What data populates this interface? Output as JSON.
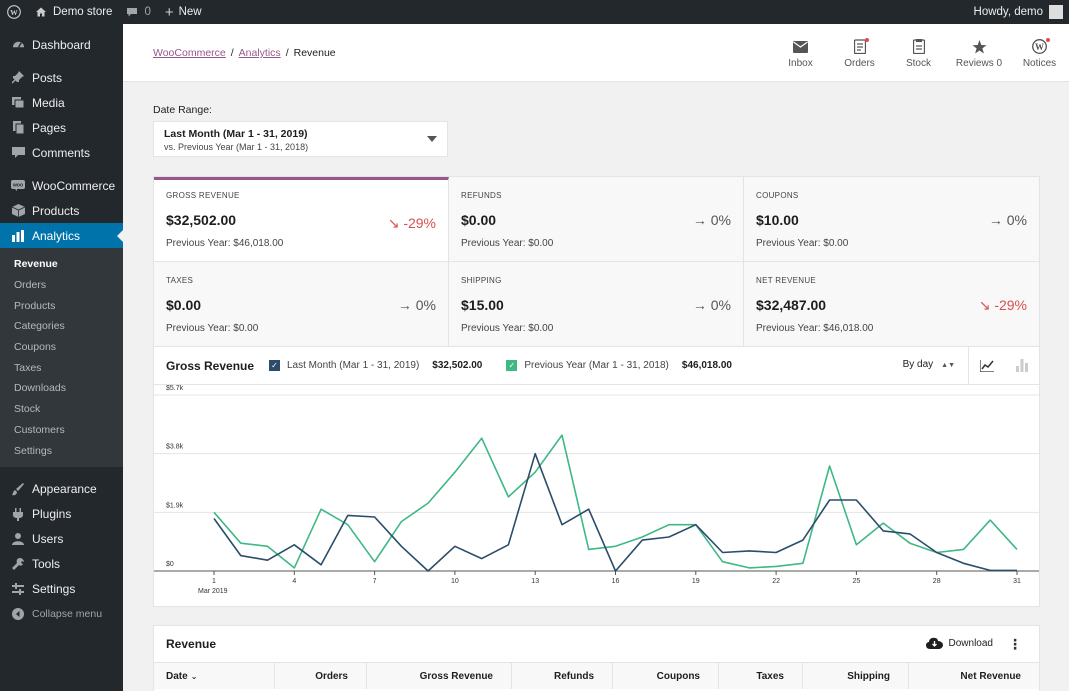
{
  "adminbar": {
    "site_name": "Demo store",
    "comments_count": "0",
    "new_label": "New",
    "howdy": "Howdy, demo"
  },
  "sidebar": {
    "items_top": [
      {
        "label": "Dashboard",
        "icon": "dashboard-icon"
      }
    ],
    "items_mid": [
      {
        "label": "Posts",
        "icon": "pin-icon"
      },
      {
        "label": "Media",
        "icon": "media-icon"
      },
      {
        "label": "Pages",
        "icon": "pages-icon"
      },
      {
        "label": "Comments",
        "icon": "comments-icon"
      }
    ],
    "woocommerce": "WooCommerce",
    "products": "Products",
    "analytics": "Analytics",
    "submenu": [
      "Revenue",
      "Orders",
      "Products",
      "Categories",
      "Coupons",
      "Taxes",
      "Downloads",
      "Stock",
      "Customers",
      "Settings"
    ],
    "items_bottom": [
      {
        "label": "Appearance",
        "icon": "brush-icon"
      },
      {
        "label": "Plugins",
        "icon": "plug-icon"
      },
      {
        "label": "Users",
        "icon": "users-icon"
      },
      {
        "label": "Tools",
        "icon": "wrench-icon"
      },
      {
        "label": "Settings",
        "icon": "settings-icon"
      }
    ],
    "collapse": "Collapse menu"
  },
  "header": {
    "breadcrumb": [
      "WooCommerce",
      "Analytics",
      "Revenue"
    ],
    "actions": [
      {
        "label": "Inbox",
        "icon": "inbox-icon",
        "dot": false
      },
      {
        "label": "Orders",
        "icon": "orders-icon",
        "dot": true
      },
      {
        "label": "Stock",
        "icon": "stock-icon",
        "dot": false
      },
      {
        "label": "Reviews 0",
        "icon": "star-icon",
        "dot": false
      },
      {
        "label": "Notices",
        "icon": "wordpress-icon",
        "dot": true
      }
    ]
  },
  "date_range": {
    "label": "Date Range:",
    "main": "Last Month (Mar 1 - 31, 2019)",
    "sub": "vs. Previous Year (Mar 1 - 31, 2018)"
  },
  "summary": [
    {
      "label": "GROSS REVENUE",
      "value": "$32,502.00",
      "delta": "-29%",
      "negative": true,
      "prev": "Previous Year: $46,018.00",
      "selected": true
    },
    {
      "label": "REFUNDS",
      "value": "$0.00",
      "delta": "0%",
      "negative": false,
      "prev": "Previous Year: $0.00",
      "selected": false
    },
    {
      "label": "COUPONS",
      "value": "$10.00",
      "delta": "0%",
      "negative": false,
      "prev": "Previous Year: $0.00",
      "selected": false
    },
    {
      "label": "TAXES",
      "value": "$0.00",
      "delta": "0%",
      "negative": false,
      "prev": "Previous Year: $0.00",
      "selected": false
    },
    {
      "label": "SHIPPING",
      "value": "$15.00",
      "delta": "0%",
      "negative": false,
      "prev": "Previous Year: $0.00",
      "selected": false
    },
    {
      "label": "NET REVENUE",
      "value": "$32,487.00",
      "delta": "-29%",
      "negative": true,
      "prev": "Previous Year: $46,018.00",
      "selected": false
    }
  ],
  "chart": {
    "title": "Gross Revenue",
    "legend": [
      {
        "label": "Last Month (Mar 1 - 31, 2019)",
        "total": "$32,502.00",
        "color": "#2b4d6a"
      },
      {
        "label": "Previous Year (Mar 1 - 31, 2018)",
        "total": "$46,018.00",
        "color": "#3fb884"
      }
    ],
    "interval": "By day",
    "accent": "#96588a"
  },
  "chart_data": {
    "type": "line",
    "title": "Gross Revenue",
    "x": [
      1,
      2,
      3,
      4,
      5,
      6,
      7,
      8,
      9,
      10,
      11,
      12,
      13,
      14,
      15,
      16,
      17,
      18,
      19,
      20,
      21,
      22,
      23,
      24,
      25,
      26,
      27,
      28,
      29,
      30,
      31
    ],
    "x_ticks": [
      "1",
      "4",
      "7",
      "10",
      "13",
      "16",
      "19",
      "22",
      "25",
      "28",
      "31"
    ],
    "x_sublabel": "Mar 2019",
    "y_ticks": [
      "$0",
      "$1.9k",
      "$3.8k",
      "$5.7k"
    ],
    "ylim": [
      0,
      5700
    ],
    "series": [
      {
        "name": "Last Month (Mar 1 - 31, 2019)",
        "color": "#2b4d6a",
        "values": [
          1700,
          500,
          350,
          850,
          200,
          1800,
          1750,
          800,
          0,
          800,
          400,
          850,
          3800,
          1500,
          2000,
          0,
          1000,
          1100,
          1500,
          600,
          650,
          600,
          1000,
          2300,
          2300,
          1300,
          1200,
          600,
          250,
          20,
          20
        ]
      },
      {
        "name": "Previous Year (Mar 1 - 31, 2018)",
        "color": "#3fb884",
        "values": [
          1900,
          900,
          800,
          100,
          2000,
          1500,
          300,
          1600,
          2200,
          3200,
          4300,
          2400,
          3200,
          4400,
          700,
          800,
          1100,
          1500,
          1500,
          300,
          100,
          150,
          250,
          3400,
          850,
          1550,
          900,
          600,
          700,
          1650,
          700
        ]
      }
    ],
    "grid": true
  },
  "table": {
    "title": "Revenue",
    "download": "Download",
    "columns": [
      "Date",
      "Orders",
      "Gross Revenue",
      "Refunds",
      "Coupons",
      "Taxes",
      "Shipping",
      "Net Revenue"
    ]
  }
}
